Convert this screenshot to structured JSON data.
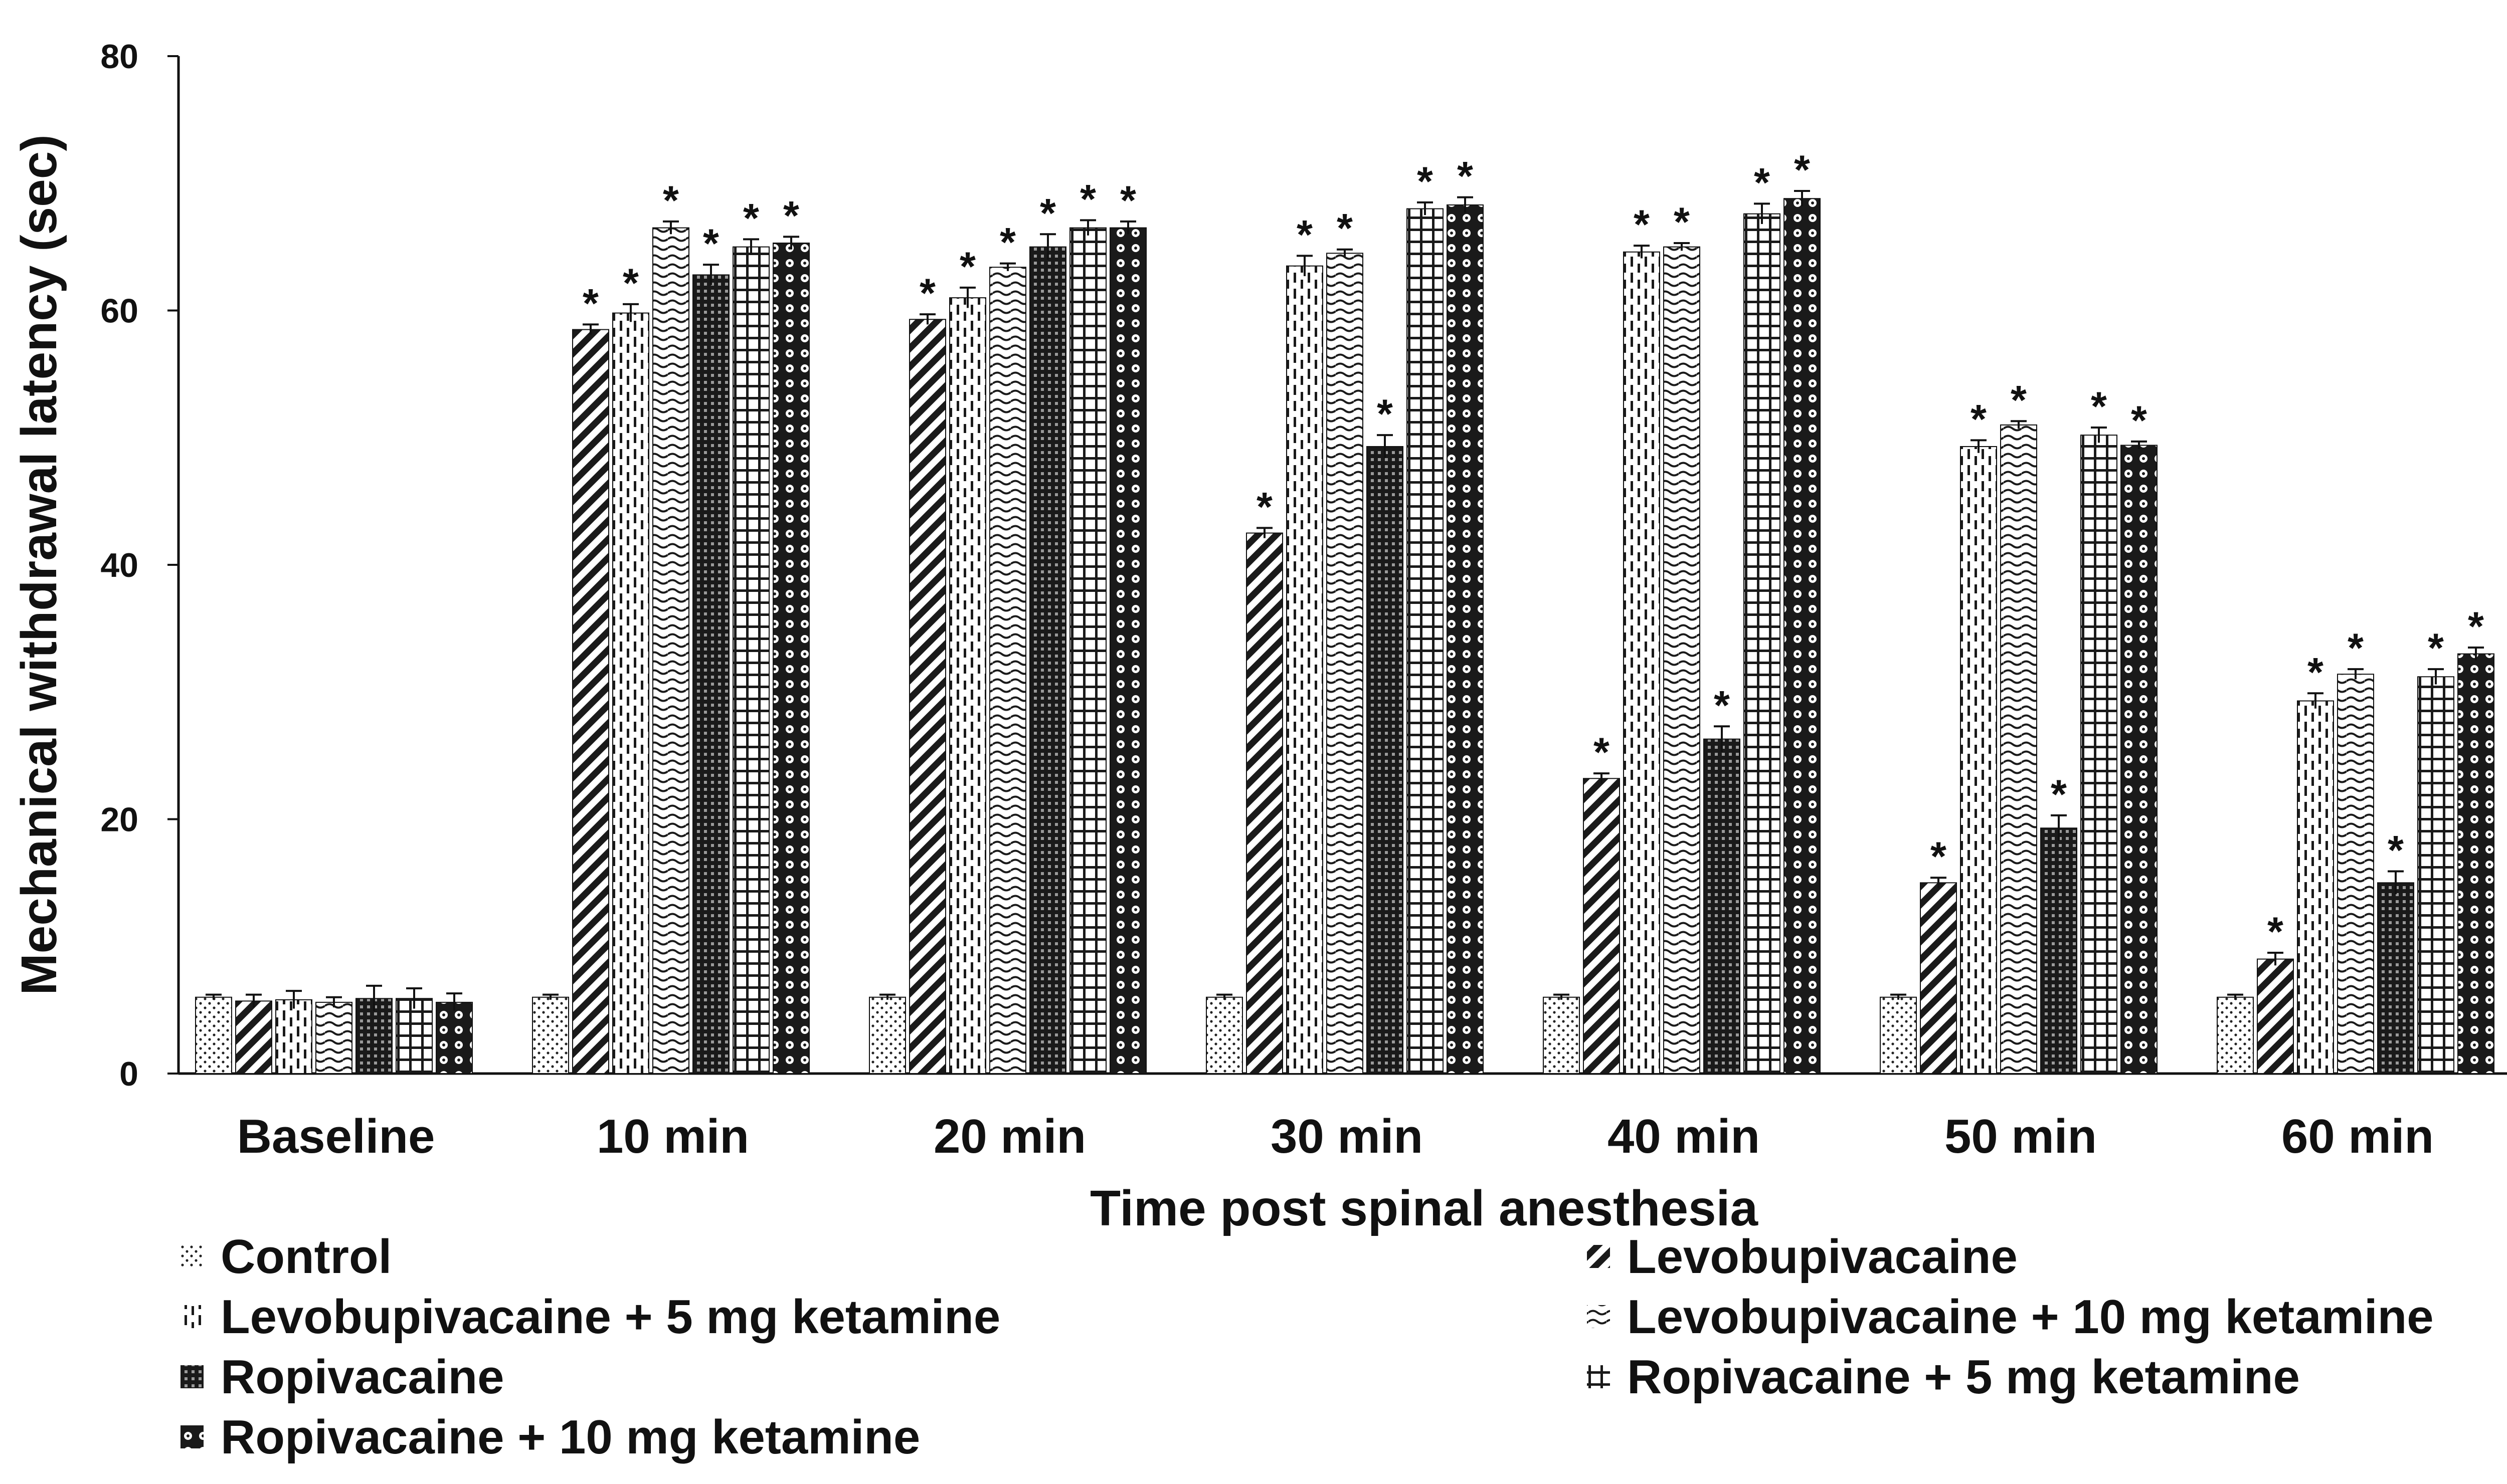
{
  "chart_data": {
    "type": "bar",
    "title": "",
    "xlabel": "Time post spinal anesthesia",
    "ylabel": "Mechanical withdrawal latency  (sec)",
    "ylim": [
      0,
      80
    ],
    "yticks": [
      "0",
      "20",
      "40",
      "60",
      "80"
    ],
    "categories": [
      "Baseline",
      "10 min",
      "20 min",
      "30 min",
      "40 min",
      "50 min",
      "60 min"
    ],
    "significance_marker": "*",
    "series": [
      {
        "name": "Control",
        "pattern": "dots",
        "values": [
          6,
          6,
          6,
          6,
          6,
          6,
          6
        ],
        "errors": [
          0.2,
          0.2,
          0.2,
          0.2,
          0.2,
          0.2,
          0.2
        ],
        "significant": [
          false,
          false,
          false,
          false,
          false,
          false,
          false
        ]
      },
      {
        "name": "Levobupivacaine",
        "pattern": "diagonal",
        "values": [
          5.7,
          58.5,
          59.3,
          42.5,
          23.2,
          15,
          9
        ],
        "errors": [
          0.5,
          0.4,
          0.4,
          0.4,
          0.4,
          0.4,
          0.5
        ],
        "significant": [
          false,
          true,
          true,
          true,
          true,
          true,
          true
        ]
      },
      {
        "name": "Levobupivacaine + 5 mg ketamine",
        "pattern": "dashed-vertical",
        "values": [
          5.8,
          59.8,
          61,
          63.5,
          64.6,
          49.3,
          29.3
        ],
        "errors": [
          0.7,
          0.7,
          0.8,
          0.8,
          0.5,
          0.5,
          0.6
        ],
        "significant": [
          false,
          true,
          true,
          true,
          true,
          true,
          true
        ]
      },
      {
        "name": "Levobupivacaine + 10 mg ketamine",
        "pattern": "waves",
        "values": [
          5.6,
          66.5,
          63.4,
          64.5,
          65,
          51,
          31.4
        ],
        "errors": [
          0.4,
          0.5,
          0.3,
          0.3,
          0.3,
          0.3,
          0.4
        ],
        "significant": [
          false,
          true,
          true,
          true,
          true,
          true,
          true
        ]
      },
      {
        "name": "Ropivacaine",
        "pattern": "dense-grid",
        "values": [
          5.9,
          62.8,
          65,
          49.3,
          26.3,
          19.3,
          15
        ],
        "errors": [
          1,
          0.8,
          1,
          0.9,
          1,
          1,
          0.9
        ],
        "significant": [
          false,
          true,
          true,
          true,
          true,
          true,
          true
        ]
      },
      {
        "name": "Ropivacaine + 5 mg ketamine",
        "pattern": "grid",
        "values": [
          5.9,
          65,
          66.5,
          68,
          67.6,
          50.2,
          31.2
        ],
        "errors": [
          0.8,
          0.6,
          0.6,
          0.5,
          0.8,
          0.6,
          0.6
        ],
        "significant": [
          false,
          true,
          true,
          true,
          true,
          true,
          true
        ]
      },
      {
        "name": "Ropivacaine + 10 mg ketamine",
        "pattern": "circles",
        "values": [
          5.6,
          65.3,
          66.5,
          68.3,
          68.8,
          49.4,
          33
        ],
        "errors": [
          0.7,
          0.5,
          0.5,
          0.6,
          0.6,
          0.3,
          0.5
        ],
        "significant": [
          false,
          true,
          true,
          true,
          true,
          true,
          true
        ]
      }
    ],
    "legend_position": "bottom"
  },
  "colors": {
    "ink": "#111111",
    "background": "#ffffff"
  }
}
